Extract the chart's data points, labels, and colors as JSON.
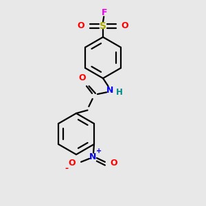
{
  "bg_color": "#e8e8e8",
  "F_color": "#ee00ee",
  "S_color": "#aaaa00",
  "O_color": "#ff0000",
  "N_color": "#0000ee",
  "H_color": "#008888",
  "bond_color": "#000000",
  "bond_width": 1.6,
  "fig_w": 3.0,
  "fig_h": 3.0,
  "dpi": 100,
  "xlim": [
    0,
    6
  ],
  "ylim": [
    0,
    10
  ]
}
